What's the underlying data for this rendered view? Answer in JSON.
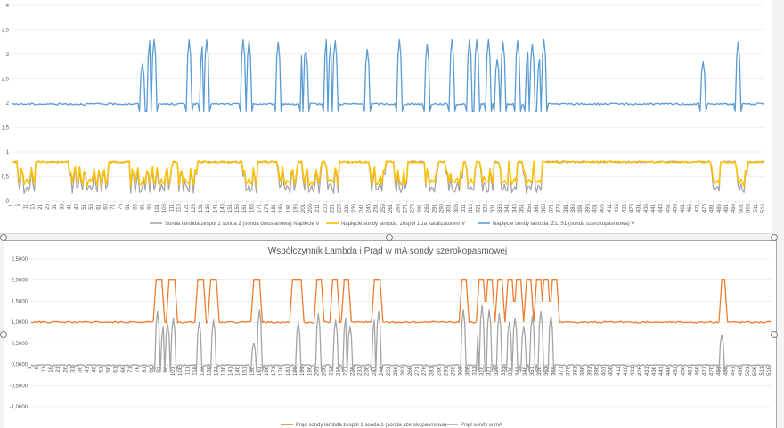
{
  "chart_data": [
    {
      "type": "line",
      "title": "",
      "xlabel": "",
      "ylabel": "",
      "ylim": [
        0,
        4
      ],
      "yticks": [
        "0",
        "0,5",
        "1",
        "1,5",
        "2",
        "2,5",
        "3",
        "3,5",
        "4"
      ],
      "xlim": [
        1,
        516
      ],
      "grid": true,
      "legend": "bottom",
      "series": [
        {
          "name": "Sonda lambda zespół 1 sonda 2 (sonda dwustanowa) Napięcie V",
          "color": "#a5a5a5",
          "baseline": 0.8,
          "low": 0.15,
          "dips": [
            [
              5,
              16
            ],
            [
              40,
              66
            ],
            [
              82,
              96
            ],
            [
              97,
              110
            ],
            [
              115,
              127
            ],
            [
              159,
              168
            ],
            [
              183,
              196
            ],
            [
              200,
              212
            ],
            [
              216,
              224
            ],
            [
              246,
              256
            ],
            [
              263,
              271
            ],
            [
              284,
              292
            ],
            [
              298,
              309
            ],
            [
              312,
              318
            ],
            [
              322,
              330
            ],
            [
              335,
              340
            ],
            [
              342,
              346
            ],
            [
              351,
              357
            ],
            [
              359,
              363
            ],
            [
              480,
              485
            ],
            [
              497,
              504
            ]
          ]
        },
        {
          "name": "Napięcie sondy lambda: zespół 1 za katalizatorem V",
          "color": "#ffc000",
          "baseline": 0.8,
          "low": 0.3,
          "dips": [
            [
              5,
              16
            ],
            [
              40,
              66
            ],
            [
              82,
              96
            ],
            [
              97,
              110
            ],
            [
              115,
              127
            ],
            [
              159,
              168
            ],
            [
              183,
              196
            ],
            [
              200,
              212
            ],
            [
              216,
              224
            ],
            [
              246,
              256
            ],
            [
              263,
              271
            ],
            [
              284,
              292
            ],
            [
              298,
              309
            ],
            [
              312,
              318
            ],
            [
              322,
              330
            ],
            [
              335,
              340
            ],
            [
              342,
              346
            ],
            [
              351,
              357
            ],
            [
              359,
              363
            ],
            [
              480,
              485
            ],
            [
              497,
              504
            ]
          ]
        },
        {
          "name": "Napięcie sondy lambda: Z1. S1 (sonda szerokopasmowa) V",
          "color": "#5b9bd5",
          "baseline": 1.98,
          "spikes": [
            [
              90,
              2.8
            ],
            [
              95,
              3.28
            ],
            [
              98,
              3.3
            ],
            [
              122,
              3.3
            ],
            [
              131,
              3.15
            ],
            [
              134,
              3.3
            ],
            [
              159,
              3.3
            ],
            [
              163,
              3.28
            ],
            [
              183,
              3.25
            ],
            [
              200,
              3.3
            ],
            [
              202,
              3.05
            ],
            [
              216,
              3.3
            ],
            [
              219,
              3.2
            ],
            [
              222,
              3.28
            ],
            [
              244,
              3.1
            ],
            [
              266,
              3.3
            ],
            [
              285,
              3.2
            ],
            [
              302,
              3.3
            ],
            [
              314,
              3.3
            ],
            [
              319,
              3.3
            ],
            [
              327,
              3.3
            ],
            [
              333,
              2.9
            ],
            [
              337,
              3.25
            ],
            [
              347,
              3.28
            ],
            [
              354,
              3.05
            ],
            [
              357,
              3.2
            ],
            [
              362,
              2.9
            ],
            [
              365,
              3.3
            ],
            [
              474,
              2.85
            ],
            [
              498,
              3.25
            ]
          ]
        }
      ]
    },
    {
      "type": "line",
      "title": "Współczynnik Lambda i Prąd w mA sondy szerokopasmowej",
      "xlabel": "",
      "ylabel": "",
      "ylim": [
        -1,
        2.5
      ],
      "yticks": [
        "-1,0000",
        "-0,5000",
        "0,0000",
        "0,5000",
        "1,0000",
        "1,5000",
        "2,0000",
        "2,5000"
      ],
      "xlim": [
        1,
        516
      ],
      "grid": true,
      "legend": "bottom",
      "series": [
        {
          "name": "Prąd sondy lambda zespół 1 sonda 1 (sonda szerokopasmowa)",
          "color": "#ed7d31",
          "baseline": 1.0,
          "pulses": [
            [
              88,
              92
            ],
            [
              97,
              101
            ],
            [
              117,
              121
            ],
            [
              126,
              130
            ],
            [
              156,
              160
            ],
            [
              183,
              189
            ],
            [
              200,
              203
            ],
            [
              211,
              214
            ],
            [
              219,
              222
            ],
            [
              240,
              244
            ],
            [
              301,
              304
            ],
            [
              313,
              316
            ],
            [
              319,
              322
            ],
            [
              326,
              329
            ],
            [
              333,
              336
            ],
            [
              339,
              342
            ],
            [
              346,
              349
            ],
            [
              353,
              356
            ],
            [
              358,
              361
            ],
            [
              364,
              367
            ],
            [
              482,
              484
            ]
          ]
        },
        {
          "name": "Prąd sondy w mA",
          "color": "#a5a5a5",
          "baseline": -0.02,
          "spikes": [
            [
              89,
              1.25
            ],
            [
              93,
              0.9
            ],
            [
              96,
              0.95
            ],
            [
              100,
              1.1
            ],
            [
              118,
              1.0
            ],
            [
              128,
              1.05
            ],
            [
              156,
              0.5
            ],
            [
              160,
              1.3
            ],
            [
              187,
              1.0
            ],
            [
              201,
              1.2
            ],
            [
              213,
              1.05
            ],
            [
              220,
              1.1
            ],
            [
              223,
              0.9
            ],
            [
              240,
              1.05
            ],
            [
              243,
              1.25
            ],
            [
              302,
              1.3
            ],
            [
              313,
              0.95
            ],
            [
              315,
              1.4
            ],
            [
              320,
              1.3
            ],
            [
              327,
              1.2
            ],
            [
              334,
              1.0
            ],
            [
              338,
              1.1
            ],
            [
              344,
              0.9
            ],
            [
              350,
              1.15
            ],
            [
              356,
              1.25
            ],
            [
              363,
              1.15
            ],
            [
              482,
              0.7
            ]
          ]
        }
      ]
    }
  ]
}
